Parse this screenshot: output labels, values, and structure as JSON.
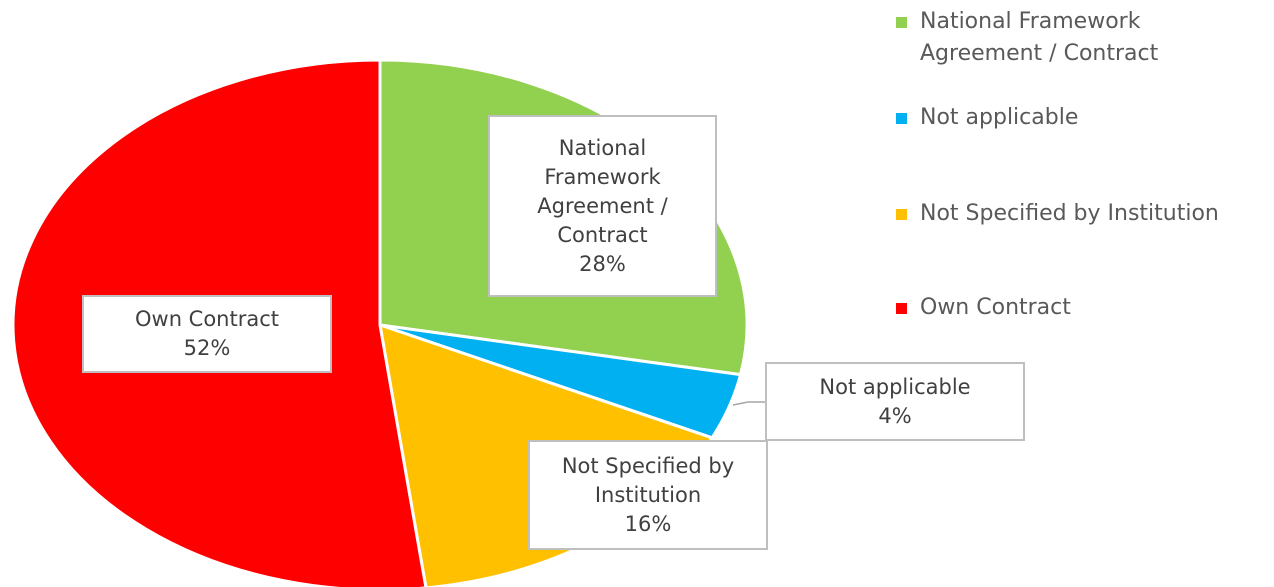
{
  "chart_data": {
    "type": "pie",
    "categories": [
      "National Framework Agreement / Contract",
      "Not applicable",
      "Not Specified by Institution",
      "Own Contract"
    ],
    "values": [
      28,
      4,
      16,
      52
    ],
    "value_labels": [
      "28%",
      "4%",
      "16%",
      "52%"
    ],
    "colors": [
      "#92d050",
      "#00b0f0",
      "#ffc000",
      "#ff0000"
    ],
    "legend": "right"
  }
}
